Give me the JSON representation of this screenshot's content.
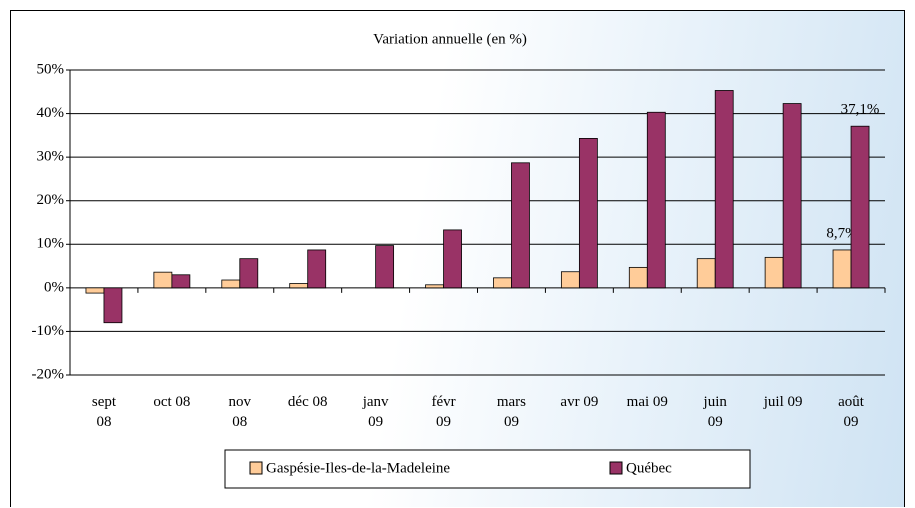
{
  "chart_data": {
    "type": "bar",
    "title": "Variation annuelle (en %)",
    "categories": [
      "sept\n08",
      "oct 08",
      "nov\n08",
      "déc 08",
      "janv\n09",
      "févr\n09",
      "mars\n09",
      "avr 09",
      "mai 09",
      "juin\n09",
      "juil 09",
      "août\n09"
    ],
    "series": [
      {
        "name": "Gaspésie-Iles-de-la-Madeleine",
        "color": "#ffcc99",
        "values": [
          -1.2,
          3.6,
          1.8,
          1.0,
          0,
          0.7,
          2.3,
          3.7,
          4.7,
          6.7,
          7.0,
          8.7
        ],
        "value_labels": [
          null,
          null,
          null,
          null,
          null,
          null,
          null,
          null,
          null,
          null,
          null,
          "8,7%"
        ]
      },
      {
        "name": "Québec",
        "color": "#993366",
        "values": [
          -8.0,
          3.0,
          6.7,
          8.7,
          9.7,
          13.3,
          28.7,
          34.3,
          40.3,
          45.3,
          42.3,
          37.1
        ],
        "value_labels": [
          null,
          null,
          null,
          null,
          null,
          null,
          null,
          null,
          null,
          null,
          null,
          "37,1%"
        ]
      }
    ],
    "ylim": [
      -20,
      50
    ],
    "yticks": [
      {
        "value": -20,
        "label": "-20%"
      },
      {
        "value": -10,
        "label": "-10%"
      },
      {
        "value": 0,
        "label": "0%"
      },
      {
        "value": 10,
        "label": "10%"
      },
      {
        "value": 20,
        "label": "20%"
      },
      {
        "value": 30,
        "label": "30%"
      },
      {
        "value": 40,
        "label": "40%"
      },
      {
        "value": 50,
        "label": "50%"
      }
    ],
    "grid": true
  }
}
